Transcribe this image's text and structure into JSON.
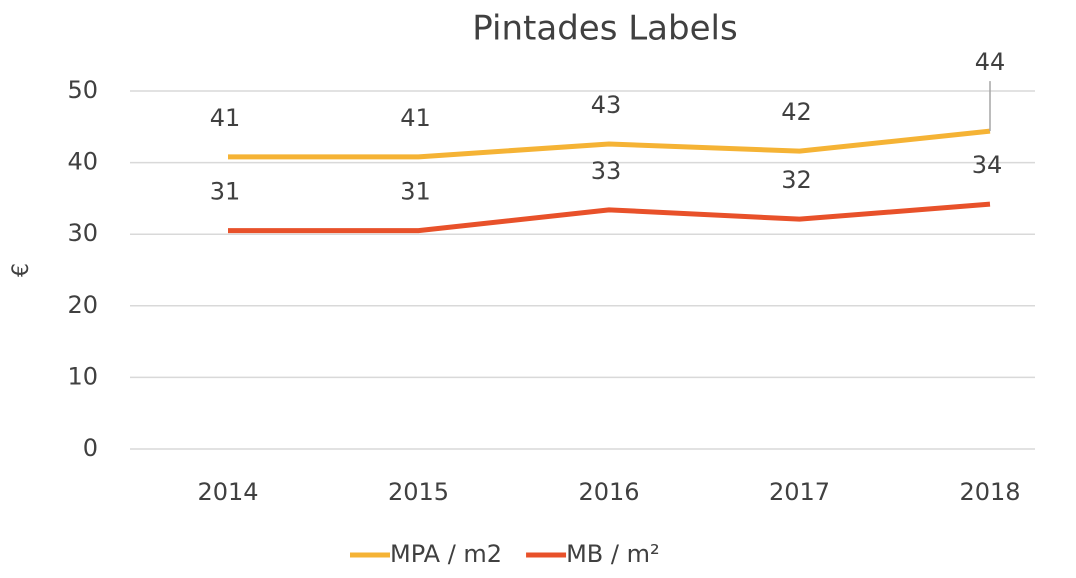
{
  "chart_data": {
    "type": "line",
    "title": "Pintades Labels",
    "y_label": "€",
    "categories": [
      "2014",
      "2015",
      "2016",
      "2017",
      "2018"
    ],
    "series": [
      {
        "name": "MPA / m2",
        "color": "#f5b335",
        "values": [
          40.8,
          40.8,
          42.6,
          41.6,
          44.4
        ],
        "value_labels": [
          "41",
          "41",
          "43",
          "42",
          "44"
        ]
      },
      {
        "name": "MB / m²",
        "color": "#e8512a",
        "values": [
          30.5,
          30.5,
          33.4,
          32.1,
          34.2
        ],
        "value_labels": [
          "31",
          "31",
          "33",
          "32",
          "34"
        ]
      }
    ],
    "ylim": [
      0,
      50
    ],
    "yticks": [
      0,
      10,
      20,
      30,
      40,
      50
    ],
    "grid": true,
    "legend": "bottom"
  }
}
